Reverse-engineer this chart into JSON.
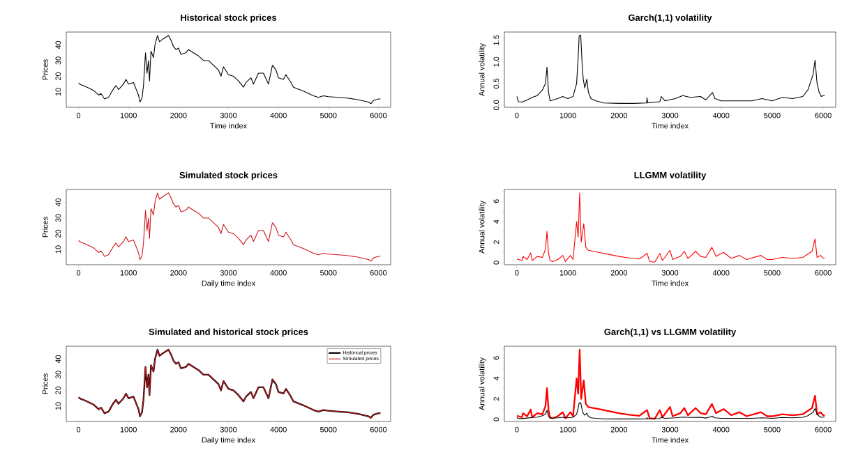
{
  "chart_data": [
    {
      "type": "line",
      "title": "Historical stock prices",
      "xlabel": "Time index",
      "ylabel": "Prices",
      "xlim": [
        -245,
        6245
      ],
      "ylim": [
        0.2,
        48.2
      ],
      "xticks": [
        0,
        1000,
        2000,
        3000,
        4000,
        5000,
        6000
      ],
      "yticks": [
        10,
        20,
        30,
        40
      ],
      "x": [
        0,
        50,
        100,
        200,
        300,
        400,
        450,
        520,
        600,
        700,
        750,
        800,
        900,
        950,
        1000,
        1100,
        1150,
        1200,
        1230,
        1270,
        1300,
        1340,
        1370,
        1400,
        1420,
        1450,
        1500,
        1530,
        1580,
        1620,
        1700,
        1800,
        1850,
        1900,
        1950,
        2000,
        2050,
        2150,
        2200,
        2300,
        2400,
        2500,
        2600,
        2700,
        2800,
        2850,
        2900,
        3000,
        3100,
        3200,
        3300,
        3350,
        3450,
        3500,
        3600,
        3700,
        3800,
        3880,
        3950,
        4000,
        4100,
        4150,
        4250,
        4300,
        4500,
        4700,
        4800,
        4900,
        5000,
        5200,
        5400,
        5600,
        5800,
        5850,
        5900,
        6000,
        6040
      ],
      "series": [
        {
          "color": "#000000",
          "values": [
            15.5,
            14.5,
            14,
            12.5,
            11,
            8,
            9,
            5.5,
            6.5,
            12,
            14,
            11.5,
            15,
            18,
            15,
            16,
            12,
            8,
            3.5,
            6,
            14,
            35,
            22,
            30,
            17,
            36,
            32,
            40,
            46,
            42,
            44,
            46,
            43,
            39,
            37,
            38,
            34,
            35,
            37,
            35,
            33,
            30,
            30,
            27,
            24,
            20,
            26,
            21,
            20,
            17,
            13,
            16,
            19,
            15,
            22,
            22,
            15,
            27,
            24,
            19,
            18,
            21,
            16,
            13,
            10.5,
            7.5,
            6.5,
            7.5,
            7,
            6.5,
            6,
            5,
            3.5,
            2.5,
            4.5,
            5.5,
            5.5
          ]
        }
      ]
    },
    {
      "type": "line",
      "title": "Garch(1,1) volatility",
      "xlabel": "Time index",
      "ylabel": "Annual volatility",
      "xlim": [
        -245,
        6245
      ],
      "ylim": [
        -0.05,
        1.69
      ],
      "xticks": [
        0,
        1000,
        2000,
        3000,
        4000,
        5000,
        6000
      ],
      "yticks": [
        {
          "value": 0,
          "label": "0.0"
        },
        0.5,
        {
          "value": 1,
          "label": "1.0"
        },
        1.5
      ],
      "x": [
        0,
        30,
        100,
        200,
        300,
        400,
        500,
        560,
        590,
        620,
        650,
        800,
        900,
        1000,
        1100,
        1170,
        1200,
        1220,
        1250,
        1280,
        1300,
        1330,
        1370,
        1400,
        1450,
        1550,
        1700,
        2000,
        2300,
        2540,
        2550,
        2560,
        2800,
        2830,
        2900,
        3100,
        3250,
        3400,
        3600,
        3700,
        3830,
        3880,
        4000,
        4300,
        4600,
        4800,
        5000,
        5200,
        5400,
        5600,
        5700,
        5800,
        5840,
        5880,
        5920,
        5960,
        6000,
        6030
      ],
      "series": [
        {
          "color": "#000000",
          "values": [
            0.2,
            0.08,
            0.07,
            0.12,
            0.18,
            0.22,
            0.35,
            0.5,
            0.88,
            0.3,
            0.1,
            0.15,
            0.2,
            0.15,
            0.2,
            0.5,
            1.1,
            1.6,
            1.62,
            0.9,
            0.6,
            0.4,
            0.6,
            0.3,
            0.15,
            0.1,
            0.05,
            0.04,
            0.04,
            0.05,
            0.17,
            0.05,
            0.08,
            0.2,
            0.1,
            0.15,
            0.22,
            0.18,
            0.2,
            0.12,
            0.29,
            0.15,
            0.1,
            0.1,
            0.1,
            0.15,
            0.1,
            0.18,
            0.15,
            0.2,
            0.35,
            0.7,
            1.04,
            0.5,
            0.3,
            0.2,
            0.22,
            0.22
          ]
        }
      ]
    },
    {
      "type": "line",
      "title": "Simulated stock prices",
      "xlabel": "Daily time index",
      "ylabel": "Prices",
      "xlim": [
        -245,
        6245
      ],
      "ylim": [
        0.2,
        48.2
      ],
      "xticks": [
        0,
        1000,
        2000,
        3000,
        4000,
        5000,
        6000
      ],
      "yticks": [
        10,
        20,
        30,
        40
      ],
      "x": [
        0,
        50,
        100,
        200,
        300,
        400,
        450,
        520,
        600,
        700,
        750,
        800,
        900,
        950,
        1000,
        1100,
        1150,
        1200,
        1230,
        1270,
        1300,
        1340,
        1370,
        1400,
        1420,
        1450,
        1500,
        1530,
        1580,
        1620,
        1700,
        1800,
        1850,
        1900,
        1950,
        2000,
        2050,
        2150,
        2200,
        2300,
        2400,
        2500,
        2600,
        2700,
        2800,
        2850,
        2900,
        3000,
        3100,
        3200,
        3300,
        3350,
        3450,
        3500,
        3600,
        3700,
        3800,
        3880,
        3950,
        4000,
        4100,
        4150,
        4250,
        4300,
        4500,
        4700,
        4800,
        4900,
        5000,
        5200,
        5400,
        5600,
        5800,
        5850,
        5900,
        6000,
        6040
      ],
      "series": [
        {
          "color": "#d0161a",
          "values": [
            15.5,
            14.5,
            14,
            12.5,
            11,
            8,
            9,
            5.5,
            6.5,
            12,
            14,
            11.5,
            15,
            18,
            15,
            16,
            12,
            8,
            3.5,
            6,
            14,
            35,
            22,
            30,
            17,
            36,
            32,
            40,
            46,
            42,
            44,
            46,
            43,
            39,
            37,
            38,
            34,
            35,
            37,
            35,
            33,
            30,
            30,
            27,
            24,
            20,
            26,
            21,
            20,
            17,
            13,
            16,
            19,
            15,
            22,
            22,
            15,
            27,
            24,
            19,
            18,
            21,
            16,
            13,
            10.5,
            7.5,
            6.5,
            7.5,
            7,
            6.5,
            6,
            5,
            3.5,
            2.5,
            4.5,
            5.5,
            5.5
          ]
        }
      ]
    },
    {
      "type": "line",
      "title": "LLGMM volatility",
      "xlabel": "Time index",
      "ylabel": "Annual volatility",
      "xlim": [
        -245,
        6245
      ],
      "ylim": [
        -0.21,
        7.14
      ],
      "xticks": [
        0,
        1000,
        2000,
        3000,
        4000,
        5000,
        6000
      ],
      "yticks": [
        0,
        {
          "value": 1,
          "label": null
        },
        2,
        {
          "value": 3,
          "label": null
        },
        4,
        {
          "value": 5,
          "label": null
        },
        6,
        {
          "value": 7,
          "label": null
        }
      ],
      "x": [
        0,
        100,
        120,
        200,
        270,
        300,
        400,
        500,
        560,
        590,
        620,
        650,
        700,
        800,
        900,
        950,
        1050,
        1100,
        1170,
        1200,
        1230,
        1260,
        1310,
        1350,
        1400,
        1600,
        1800,
        2000,
        2200,
        2400,
        2550,
        2600,
        2700,
        2800,
        2850,
        3000,
        3050,
        3200,
        3280,
        3350,
        3500,
        3600,
        3700,
        3820,
        3900,
        4050,
        4200,
        4360,
        4500,
        4780,
        4900,
        5000,
        5200,
        5400,
        5600,
        5780,
        5840,
        5880,
        5950,
        6000,
        6030
      ],
      "series": [
        {
          "color": "#ff0000",
          "values": [
            0.35,
            0.2,
            0.6,
            0.3,
            0.95,
            0.2,
            0.6,
            0.5,
            1.3,
            3.05,
            0.9,
            0.2,
            0.1,
            0.3,
            0.7,
            0.1,
            0.7,
            0.3,
            4.0,
            2.5,
            6.8,
            2.0,
            3.8,
            1.5,
            1.2,
            1.0,
            0.8,
            0.6,
            0.45,
            0.35,
            0.9,
            0.1,
            0.05,
            0.9,
            0.2,
            1.2,
            0.3,
            0.6,
            1.1,
            0.4,
            1.1,
            0.6,
            0.5,
            1.5,
            0.6,
            1.0,
            0.4,
            0.7,
            0.3,
            0.7,
            0.3,
            0.3,
            0.5,
            0.4,
            0.5,
            1.1,
            2.3,
            0.5,
            0.7,
            0.4,
            0.4
          ]
        }
      ]
    },
    {
      "type": "line",
      "title": "Simulated and historical stock prices",
      "xlabel": "Daily time index",
      "ylabel": "Prices",
      "xlim": [
        -245,
        6245
      ],
      "ylim": [
        0.2,
        48.2
      ],
      "xticks": [
        0,
        1000,
        2000,
        3000,
        4000,
        5000,
        6000
      ],
      "yticks": [
        10,
        20,
        30,
        40
      ],
      "legend": "top right",
      "x": [
        0,
        50,
        100,
        200,
        300,
        400,
        450,
        520,
        600,
        700,
        750,
        800,
        900,
        950,
        1000,
        1100,
        1150,
        1200,
        1230,
        1270,
        1300,
        1340,
        1370,
        1400,
        1420,
        1450,
        1500,
        1530,
        1580,
        1620,
        1700,
        1800,
        1850,
        1900,
        1950,
        2000,
        2050,
        2150,
        2200,
        2300,
        2400,
        2500,
        2600,
        2700,
        2800,
        2850,
        2900,
        3000,
        3100,
        3200,
        3300,
        3350,
        3450,
        3500,
        3600,
        3700,
        3800,
        3880,
        3950,
        4000,
        4100,
        4150,
        4250,
        4300,
        4500,
        4700,
        4800,
        4900,
        5000,
        5200,
        5400,
        5600,
        5800,
        5850,
        5900,
        6000,
        6040
      ],
      "series": [
        {
          "name": "Historical prices",
          "color": "#000000",
          "values": [
            15.5,
            14.5,
            14,
            12.5,
            11,
            8,
            9,
            5.5,
            6.5,
            12,
            14,
            11.5,
            15,
            18,
            15,
            16,
            12,
            8,
            3.5,
            6,
            14,
            35,
            22,
            30,
            17,
            36,
            32,
            40,
            46,
            42,
            44,
            46,
            43,
            39,
            37,
            38,
            34,
            35,
            37,
            35,
            33,
            30,
            30,
            27,
            24,
            20,
            26,
            21,
            20,
            17,
            13,
            16,
            19,
            15,
            22,
            22,
            15,
            27,
            24,
            19,
            18,
            21,
            16,
            13,
            10.5,
            7.5,
            6.5,
            7.5,
            7,
            6.5,
            6,
            5,
            3.5,
            2.5,
            4.5,
            5.5,
            5.5
          ]
        },
        {
          "name": "Simulated prices",
          "color": "#d0161a",
          "values": [
            15.5,
            14.5,
            14,
            12.5,
            11,
            8,
            9,
            5.5,
            6.5,
            12,
            14,
            11.5,
            15,
            18,
            15,
            16,
            12,
            8,
            3.5,
            6,
            14,
            35,
            22,
            30,
            17,
            36,
            32,
            40,
            46,
            42,
            44,
            46,
            43,
            39,
            37,
            38,
            34,
            35,
            37,
            35,
            33,
            30,
            30,
            27,
            24,
            20,
            26,
            21,
            20,
            17,
            13,
            16,
            19,
            15,
            22,
            22,
            15,
            27,
            24,
            19,
            18,
            21,
            16,
            13,
            10.5,
            7.5,
            6.5,
            7.5,
            7,
            6.5,
            6,
            5,
            3.5,
            2.5,
            4.5,
            5.5,
            5.5
          ]
        }
      ]
    },
    {
      "type": "line",
      "title": "Garch(1,1) vs LLGMM volatility",
      "xlabel": "Time index",
      "ylabel": "Annual volatility",
      "xlim": [
        -245,
        6245
      ],
      "ylim": [
        -0.21,
        7.14
      ],
      "xticks": [
        0,
        1000,
        2000,
        3000,
        4000,
        5000,
        6000
      ],
      "yticks": [
        0,
        {
          "value": 1,
          "label": null
        },
        2,
        {
          "value": 3,
          "label": null
        },
        4,
        {
          "value": 5,
          "label": null
        },
        6,
        {
          "value": 7,
          "label": null
        }
      ],
      "series": [
        {
          "color": "#ff0000",
          "x": [
            0,
            100,
            120,
            200,
            270,
            300,
            400,
            500,
            560,
            590,
            620,
            650,
            700,
            800,
            900,
            950,
            1050,
            1100,
            1170,
            1200,
            1230,
            1260,
            1310,
            1350,
            1400,
            1600,
            1800,
            2000,
            2200,
            2400,
            2550,
            2600,
            2700,
            2800,
            2850,
            3000,
            3050,
            3200,
            3280,
            3350,
            3500,
            3600,
            3700,
            3820,
            3900,
            4050,
            4200,
            4360,
            4500,
            4780,
            4900,
            5000,
            5200,
            5400,
            5600,
            5780,
            5840,
            5880,
            5950,
            6000,
            6030
          ],
          "values": [
            0.35,
            0.2,
            0.6,
            0.3,
            0.95,
            0.2,
            0.6,
            0.5,
            1.3,
            3.05,
            0.9,
            0.2,
            0.1,
            0.3,
            0.7,
            0.1,
            0.7,
            0.3,
            4.0,
            2.5,
            6.8,
            2.0,
            3.8,
            1.5,
            1.2,
            1.0,
            0.8,
            0.6,
            0.45,
            0.35,
            0.9,
            0.1,
            0.05,
            0.9,
            0.2,
            1.2,
            0.3,
            0.6,
            1.1,
            0.4,
            1.1,
            0.6,
            0.5,
            1.5,
            0.6,
            1.0,
            0.4,
            0.7,
            0.3,
            0.7,
            0.3,
            0.3,
            0.5,
            0.4,
            0.5,
            1.1,
            2.3,
            0.5,
            0.7,
            0.4,
            0.4
          ]
        },
        {
          "color": "#000000",
          "x": [
            0,
            30,
            100,
            200,
            300,
            400,
            500,
            560,
            590,
            620,
            650,
            800,
            900,
            1000,
            1100,
            1170,
            1200,
            1220,
            1250,
            1280,
            1300,
            1330,
            1370,
            1400,
            1450,
            1550,
            1700,
            2000,
            2300,
            2540,
            2550,
            2560,
            2800,
            2830,
            2900,
            3100,
            3250,
            3400,
            3600,
            3700,
            3830,
            3880,
            4000,
            4300,
            4600,
            4800,
            5000,
            5200,
            5400,
            5600,
            5700,
            5800,
            5840,
            5880,
            5920,
            5960,
            6000,
            6030
          ],
          "values": [
            0.2,
            0.08,
            0.07,
            0.12,
            0.18,
            0.22,
            0.35,
            0.5,
            0.88,
            0.3,
            0.1,
            0.15,
            0.2,
            0.15,
            0.2,
            0.5,
            1.1,
            1.6,
            1.62,
            0.9,
            0.6,
            0.4,
            0.6,
            0.3,
            0.15,
            0.1,
            0.05,
            0.04,
            0.04,
            0.05,
            0.17,
            0.05,
            0.08,
            0.2,
            0.1,
            0.15,
            0.22,
            0.18,
            0.2,
            0.12,
            0.29,
            0.15,
            0.1,
            0.1,
            0.1,
            0.15,
            0.1,
            0.18,
            0.15,
            0.2,
            0.35,
            0.7,
            1.04,
            0.5,
            0.3,
            0.2,
            0.22,
            0.22
          ]
        }
      ]
    }
  ]
}
